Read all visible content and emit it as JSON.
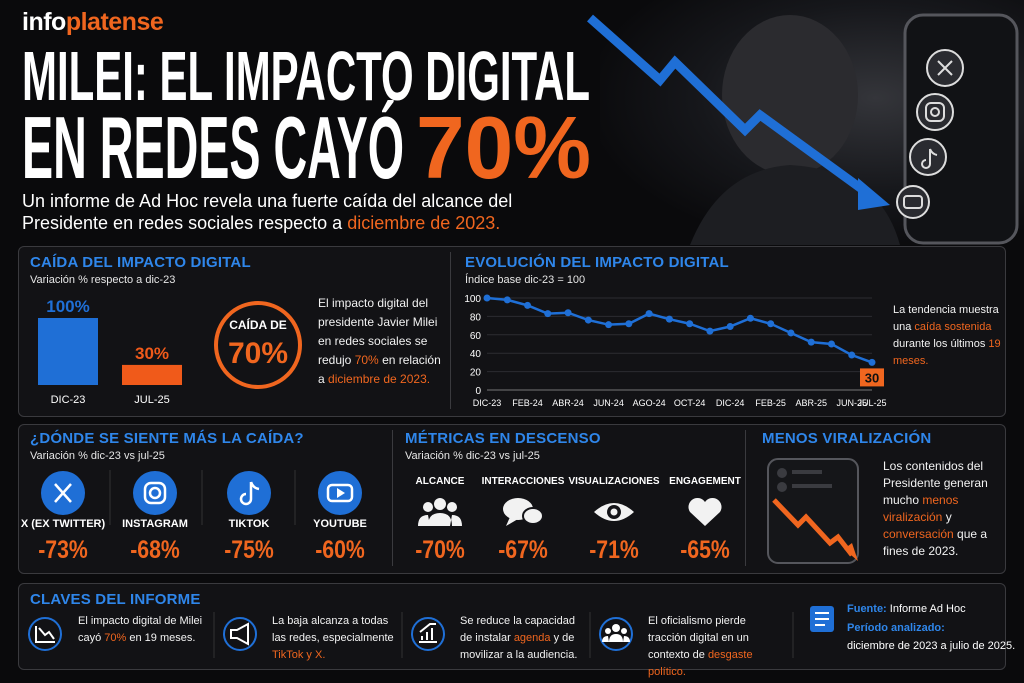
{
  "header": {
    "brand": [
      {
        "text": "info"
      },
      {
        "text": "platense",
        "accent": true
      }
    ],
    "title_line_1": "MILEI: EL IMPACTO DIGITAL",
    "title_line_2": "EN REDES CAYÓ",
    "title_highlight": "70%",
    "subtitle": [
      {
        "text": "Un informe de Ad Hoc revela una fuerte caída del alcance del Presidente en redes sociales respecto a "
      },
      {
        "text": "diciembre de 2023.",
        "accent": true
      }
    ]
  },
  "chart_data": [
    {
      "type": "bar",
      "title": "CAÍDA DEL IMPACTO DIGITAL",
      "subtitle": "Variación % respecto a dic-23",
      "categories": [
        "DIC-23",
        "JUL-25"
      ],
      "values": [
        100,
        30
      ],
      "value_labels": [
        "100%",
        "30%"
      ],
      "colors": [
        "#1f6fd6",
        "#f05a1a"
      ]
    },
    {
      "type": "line",
      "title": "EVOLUCIÓN DEL IMPACTO DIGITAL",
      "subtitle": "Índice base dic-23 = 100",
      "categories": [
        "DIC-23",
        null,
        "FEB-24",
        null,
        "ABR-24",
        null,
        "JUN-24",
        null,
        "AGO-24",
        null,
        "OCT-24",
        null,
        "DIC-24",
        null,
        "FEB-25",
        null,
        "ABR-25",
        null,
        "JUN-25",
        "JUL-25"
      ],
      "values": [
        100,
        98,
        92,
        83,
        84,
        76,
        71,
        72,
        83,
        77,
        72,
        64,
        69,
        78,
        72,
        62,
        52,
        50,
        38,
        30
      ],
      "color": "#1f6fd6",
      "ylim": [
        0,
        100
      ],
      "yticks": [
        0,
        20,
        40,
        60,
        80,
        100
      ],
      "grid": true
    }
  ],
  "summary": {
    "badge_top": "CAÍDA DE",
    "badge_value": "70%",
    "text": [
      {
        "text": "El impacto digital del presidente Javier Milei en redes sociales se redujo "
      },
      {
        "text": "70%",
        "accent": true
      },
      {
        "text": " en relación a "
      },
      {
        "text": "diciembre de 2023.",
        "accent": true
      }
    ]
  },
  "trend_note": [
    {
      "text": "La tendencia muestra una "
    },
    {
      "text": "caída sostenida",
      "accent": true
    },
    {
      "text": " durante los últimos "
    },
    {
      "text": "19 meses.",
      "accent": true
    }
  ],
  "platforms": {
    "title": "¿DÓNDE SE SIENTE MÁS LA CAÍDA?",
    "subtitle": "Variación % dic-23 vs jul-25",
    "items": [
      {
        "name": "X (EX TWITTER)",
        "change": "-73%"
      },
      {
        "name": "INSTAGRAM",
        "change": "-68%"
      },
      {
        "name": "TIKTOK",
        "change": "-75%"
      },
      {
        "name": "YOUTUBE",
        "change": "-60%"
      }
    ]
  },
  "metrics": {
    "title": "MÉTRICAS EN DESCENSO",
    "subtitle": "Variación % dic-23 vs jul-25",
    "items": [
      {
        "name": "ALCANCE",
        "change": "-70%"
      },
      {
        "name": "INTERACCIONES",
        "change": "-67%"
      },
      {
        "name": "VISUALIZACIONES",
        "change": "-71%"
      },
      {
        "name": "ENGAGEMENT",
        "change": "-65%"
      }
    ]
  },
  "virality": {
    "title": "MENOS VIRALIZACIÓN",
    "text": [
      {
        "text": "Los contenidos del Presidente generan mucho "
      },
      {
        "text": "menos viralización",
        "accent": true
      },
      {
        "text": " y "
      },
      {
        "text": "conversación",
        "accent": true
      },
      {
        "text": " que a fines de 2023."
      }
    ]
  },
  "keys": {
    "title": "CLAVES DEL INFORME",
    "items": [
      [
        {
          "text": "El impacto digital de Milei cayó "
        },
        {
          "text": "70%",
          "accent": true
        },
        {
          "text": " en 19 meses."
        }
      ],
      [
        {
          "text": "La baja alcanza a todas las redes, especialmente "
        },
        {
          "text": "TikTok y X.",
          "accent": true
        }
      ],
      [
        {
          "text": "Se reduce la capacidad de instalar "
        },
        {
          "text": "agenda",
          "accent": true
        },
        {
          "text": " y de movilizar a la audiencia."
        }
      ],
      [
        {
          "text": "El oficialismo pierde tracción digital en un contexto de "
        },
        {
          "text": "desgaste político.",
          "accent": true
        }
      ]
    ]
  },
  "source": {
    "label": "Fuente:",
    "value": " Informe Ad Hoc",
    "period_label": "Período analizado:",
    "period": "diciembre de 2023 a julio de 2025."
  }
}
